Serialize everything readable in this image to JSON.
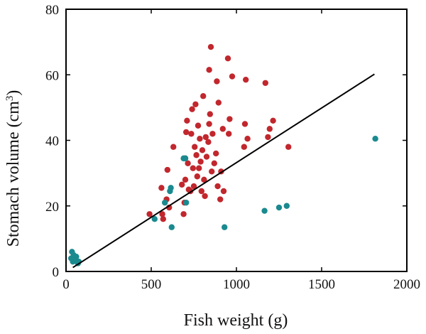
{
  "chart_data": {
    "type": "scatter",
    "title": "",
    "xlabel": "Fish weight (g)",
    "ylabel_main": "Stomach volume (cm",
    "ylabel_sup": "3",
    "ylabel_tail": ")",
    "xlim": [
      0,
      2000
    ],
    "ylim": [
      0,
      80
    ],
    "xticks": [
      0,
      500,
      1000,
      1500,
      2000
    ],
    "yticks": [
      0,
      20,
      40,
      60,
      80
    ],
    "grid": false,
    "colors": {
      "red": "#c1272d",
      "teal": "#1a8a8f",
      "line": "#000000"
    },
    "series": [
      {
        "color_key": "red",
        "points": [
          [
            490,
            17.5
          ],
          [
            560,
            25.5
          ],
          [
            565,
            17.5
          ],
          [
            570,
            16
          ],
          [
            590,
            22
          ],
          [
            595,
            31
          ],
          [
            605,
            19.5
          ],
          [
            630,
            38
          ],
          [
            680,
            26.5
          ],
          [
            690,
            17.5
          ],
          [
            695,
            21
          ],
          [
            700,
            28
          ],
          [
            700,
            34.5
          ],
          [
            705,
            42.5
          ],
          [
            710,
            46
          ],
          [
            715,
            33
          ],
          [
            720,
            25
          ],
          [
            730,
            24.5
          ],
          [
            735,
            42
          ],
          [
            740,
            49.5
          ],
          [
            745,
            31.5
          ],
          [
            750,
            26
          ],
          [
            755,
            38
          ],
          [
            760,
            51
          ],
          [
            765,
            35.5
          ],
          [
            770,
            29
          ],
          [
            775,
            44.5
          ],
          [
            780,
            31.5
          ],
          [
            785,
            40.5
          ],
          [
            790,
            33.5
          ],
          [
            795,
            24.5
          ],
          [
            800,
            37
          ],
          [
            805,
            53.5
          ],
          [
            810,
            28
          ],
          [
            815,
            23
          ],
          [
            820,
            41
          ],
          [
            825,
            35
          ],
          [
            835,
            39.5
          ],
          [
            840,
            45
          ],
          [
            840,
            61.5
          ],
          [
            845,
            48
          ],
          [
            850,
            68.5
          ],
          [
            855,
            30.5
          ],
          [
            860,
            42
          ],
          [
            870,
            33
          ],
          [
            880,
            36
          ],
          [
            885,
            58
          ],
          [
            890,
            26
          ],
          [
            895,
            51.5
          ],
          [
            905,
            22
          ],
          [
            910,
            30.5
          ],
          [
            920,
            43.5
          ],
          [
            925,
            24.5
          ],
          [
            950,
            65
          ],
          [
            955,
            42
          ],
          [
            960,
            46.5
          ],
          [
            975,
            59.5
          ],
          [
            1045,
            38
          ],
          [
            1050,
            45
          ],
          [
            1055,
            58.5
          ],
          [
            1065,
            40.5
          ],
          [
            1170,
            57.5
          ],
          [
            1185,
            41
          ],
          [
            1195,
            43.5
          ],
          [
            1215,
            46
          ],
          [
            1305,
            38
          ]
        ]
      },
      {
        "color_key": "teal",
        "points": [
          [
            30,
            4
          ],
          [
            35,
            6
          ],
          [
            40,
            3
          ],
          [
            45,
            5
          ],
          [
            50,
            3.5
          ],
          [
            55,
            4
          ],
          [
            60,
            4.5
          ],
          [
            65,
            3
          ],
          [
            70,
            2.5
          ],
          [
            75,
            3
          ],
          [
            520,
            16
          ],
          [
            580,
            21
          ],
          [
            610,
            24.5
          ],
          [
            615,
            25.5
          ],
          [
            620,
            13.5
          ],
          [
            690,
            34.5
          ],
          [
            700,
            34.5
          ],
          [
            705,
            21
          ],
          [
            930,
            13.5
          ],
          [
            1165,
            18.5
          ],
          [
            1250,
            19.5
          ],
          [
            1295,
            20
          ],
          [
            1815,
            40.5
          ]
        ]
      }
    ],
    "fit_line": {
      "x": [
        40,
        1810
      ],
      "y": [
        1.2,
        60.2
      ]
    }
  }
}
